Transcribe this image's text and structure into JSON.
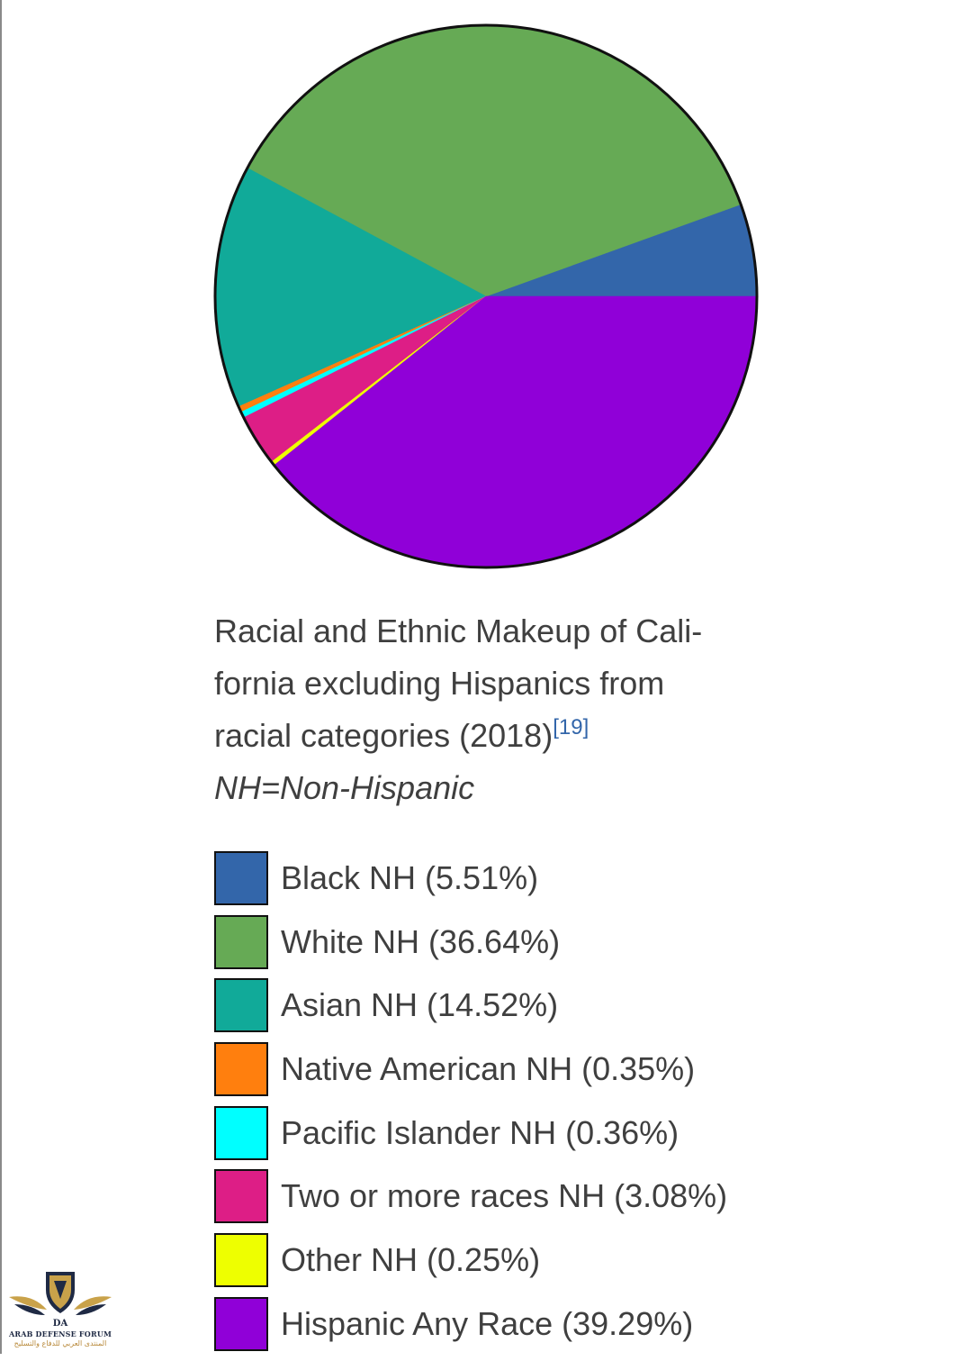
{
  "caption": {
    "title_line1": "Racial and Ethnic Makeup of Cali-",
    "title_line2": "fornia excluding Hispanics from",
    "title_line3": "racial categories (2018)",
    "citation": "[19]",
    "note": "NH=Non-Hispanic"
  },
  "chart_data": {
    "type": "pie",
    "title": "",
    "start_angle": "3 o'clock",
    "direction": "counterclockwise",
    "slices": [
      {
        "label": "Black NH (5.51%)",
        "value": 5.51,
        "color": "#3366aa"
      },
      {
        "label": "White NH (36.64%)",
        "value": 36.64,
        "color": "#66aa55"
      },
      {
        "label": "Asian NH (14.52%)",
        "value": 14.52,
        "color": "#11aa99"
      },
      {
        "label": "Native American NH (0.35%)",
        "value": 0.35,
        "color": "#ff7f0e"
      },
      {
        "label": "Pacific Islander NH (0.36%)",
        "value": 0.36,
        "color": "#00ffff"
      },
      {
        "label": "Two or more races NH (3.08%)",
        "value": 3.08,
        "color": "#dd1e86"
      },
      {
        "label": "Other NH (0.25%)",
        "value": 0.25,
        "color": "#eeff00"
      },
      {
        "label": "Hispanic Any Race (39.29%)",
        "value": 39.29,
        "color": "#9000d8"
      }
    ]
  },
  "watermark": {
    "monogram": "DA",
    "title": "ARAB DEFENSE FORUM",
    "subtitle": "المنتدى العربي للدفاع والتسليح",
    "icon": "winged-shield-icon"
  }
}
